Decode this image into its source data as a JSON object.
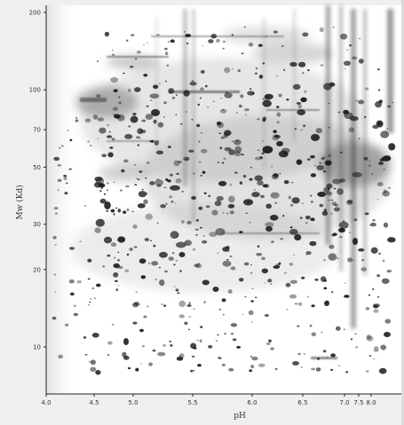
{
  "figure": {
    "y_axis": {
      "title": "Mw (Kd)",
      "ticks": [
        {
          "label": "200",
          "value": 200
        },
        {
          "label": "100",
          "value": 100
        },
        {
          "label": "70",
          "value": 70
        },
        {
          "label": "50",
          "value": 50
        },
        {
          "label": "30",
          "value": 30
        },
        {
          "label": "20",
          "value": 20
        },
        {
          "label": "10",
          "value": 10
        }
      ]
    },
    "x_axis": {
      "title": "pH",
      "ticks": [
        {
          "label": "4.0",
          "value": 4.0
        },
        {
          "label": "4.5",
          "value": 4.5
        },
        {
          "label": "5.0",
          "value": 5.0
        },
        {
          "label": "5.5",
          "value": 5.5
        },
        {
          "label": "6.0",
          "value": 6.0
        },
        {
          "label": "6.5",
          "value": 6.5
        },
        {
          "label": "7.0",
          "value": 7.0
        },
        {
          "label": "7.5",
          "value": 7.5
        },
        {
          "label": "8.0",
          "value": 8.0
        }
      ]
    },
    "colors": {
      "gel_background": "#ffffff",
      "spot": "#1a1a1a",
      "frame": "#efefef",
      "axis_text": "#333333"
    }
  }
}
